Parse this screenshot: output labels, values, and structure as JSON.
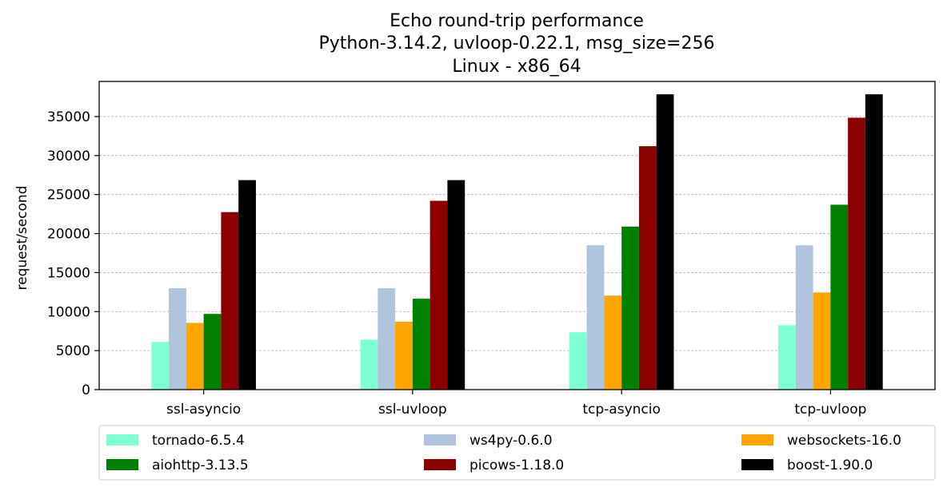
{
  "chart_data": {
    "type": "bar",
    "title_lines": [
      "Echo round-trip performance",
      "Python-3.14.2, uvloop-0.22.1, msg_size=256",
      "Linux - x86_64"
    ],
    "xlabel": "",
    "ylabel": "request/second",
    "ylim": [
      0,
      39500
    ],
    "yticks": [
      0,
      5000,
      10000,
      15000,
      20000,
      25000,
      30000,
      35000
    ],
    "grid": "y-dashed",
    "legend_position": "bottom",
    "categories": [
      "ssl-asyncio",
      "ssl-uvloop",
      "tcp-asyncio",
      "tcp-uvloop"
    ],
    "series": [
      {
        "name": "tornado-6.5.4",
        "color": "#7fffd4",
        "values": [
          6100,
          6400,
          7350,
          8250
        ]
      },
      {
        "name": "ws4py-0.6.0",
        "color": "#b0c4de",
        "values": [
          13000,
          13000,
          18500,
          18500
        ]
      },
      {
        "name": "websockets-16.0",
        "color": "#ffa500",
        "values": [
          8550,
          8700,
          12050,
          12450
        ]
      },
      {
        "name": "aiohttp-3.13.5",
        "color": "#008000",
        "values": [
          9700,
          11650,
          20900,
          23700
        ]
      },
      {
        "name": "picows-1.18.0",
        "color": "#8b0000",
        "values": [
          22750,
          24200,
          31200,
          34850
        ]
      },
      {
        "name": "boost-1.90.0",
        "color": "#000000",
        "values": [
          26850,
          26850,
          37850,
          37850
        ]
      }
    ]
  }
}
